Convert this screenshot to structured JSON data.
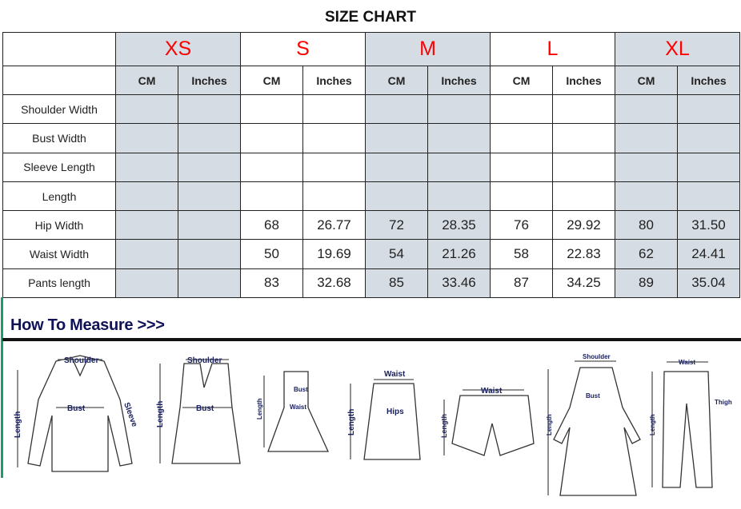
{
  "title": "SIZE CHART",
  "sizes": [
    "XS",
    "S",
    "M",
    "L",
    "XL"
  ],
  "units": [
    "CM",
    "Inches"
  ],
  "rows": [
    {
      "label": "Shoulder Width",
      "values": [
        "",
        "",
        "",
        "",
        "",
        "",
        "",
        "",
        "",
        ""
      ]
    },
    {
      "label": "Bust Width",
      "values": [
        "",
        "",
        "",
        "",
        "",
        "",
        "",
        "",
        "",
        ""
      ]
    },
    {
      "label": "Sleeve Length",
      "values": [
        "",
        "",
        "",
        "",
        "",
        "",
        "",
        "",
        "",
        ""
      ]
    },
    {
      "label": "Length",
      "values": [
        "",
        "",
        "",
        "",
        "",
        "",
        "",
        "",
        "",
        ""
      ]
    },
    {
      "label": "Hip Width",
      "values": [
        "",
        "",
        "68",
        "26.77",
        "72",
        "28.35",
        "76",
        "29.92",
        "80",
        "31.50"
      ]
    },
    {
      "label": "Waist Width",
      "values": [
        "",
        "",
        "50",
        "19.69",
        "54",
        "21.26",
        "58",
        "22.83",
        "62",
        "24.41"
      ]
    },
    {
      "label": "Pants length",
      "values": [
        "",
        "",
        "83",
        "32.68",
        "85",
        "33.46",
        "87",
        "34.25",
        "89",
        "35.04"
      ]
    }
  ],
  "colors": {
    "size_label": "#ff0000",
    "shaded_column": "#d6dce4",
    "heading": "#0f1257"
  },
  "how_to_measure": {
    "heading": "How To Measure >>>",
    "labels": {
      "shoulder": "Shoulder",
      "bust": "Bust",
      "sleeve": "Sleeve",
      "length": "Length",
      "waist": "Waist",
      "hips": "Hips",
      "thigh": "Thigh"
    }
  }
}
